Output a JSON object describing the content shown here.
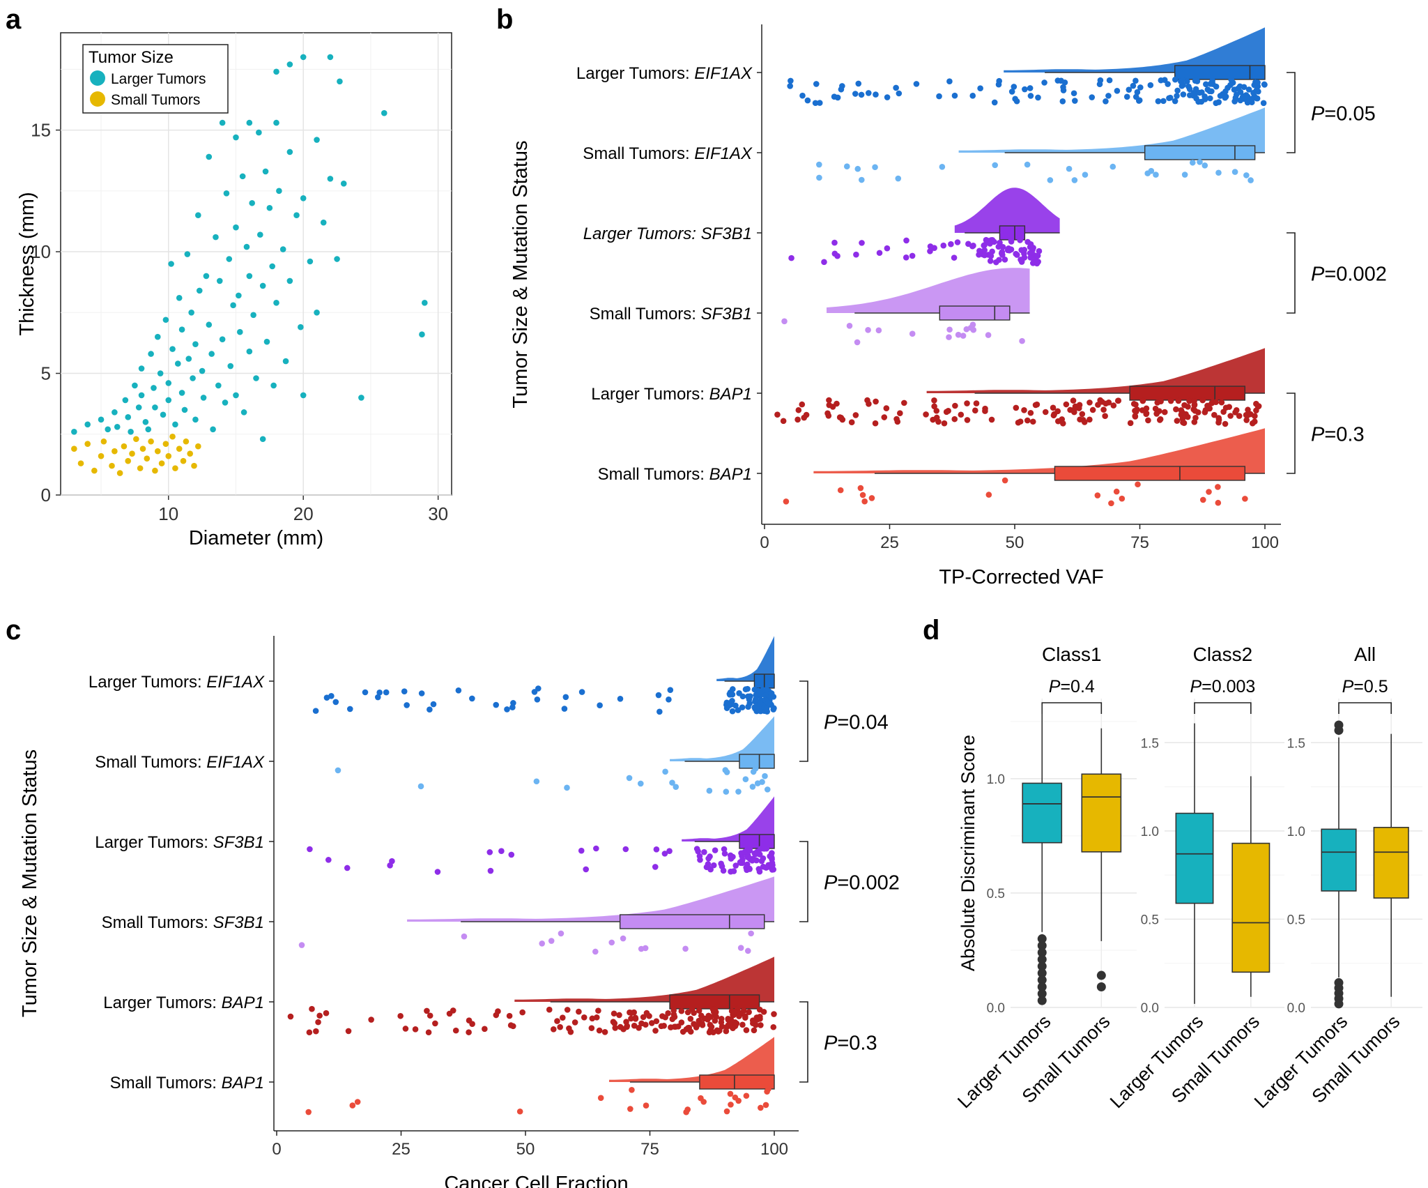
{
  "figure": {
    "panel_labels": [
      "a",
      "b",
      "c",
      "d"
    ]
  },
  "colors": {
    "larger": "#17B1BE",
    "small": "#E6B800",
    "eif_large": "#1A6FD0",
    "eif_small": "#6BB4F2",
    "sf_large": "#8E2DE8",
    "sf_small": "#C48CF2",
    "bap_large": "#B51F1F",
    "bap_small": "#EA4B3A"
  },
  "chart_data": [
    {
      "panel": "a",
      "type": "scatter",
      "title": "",
      "xlabel": "Diameter (mm)",
      "ylabel": "Thickness (mm)",
      "xlim": [
        2,
        31
      ],
      "ylim": [
        0,
        19
      ],
      "xticks": [
        10,
        20,
        30
      ],
      "yticks": [
        0,
        5,
        10,
        15
      ],
      "legend": {
        "title": "Tumor Size",
        "position": "top-left",
        "entries": [
          "Larger Tumors",
          "Small Tumors"
        ]
      },
      "series": [
        {
          "name": "Larger Tumors",
          "color": "#17B1BE",
          "points": [
            [
              3,
              2.6
            ],
            [
              4,
              2.9
            ],
            [
              5,
              3.1
            ],
            [
              5.5,
              2.7
            ],
            [
              6,
              3.4
            ],
            [
              6.2,
              2.8
            ],
            [
              6.8,
              3.9
            ],
            [
              7,
              3.2
            ],
            [
              7.2,
              2.6
            ],
            [
              7.5,
              4.5
            ],
            [
              7.8,
              3.6
            ],
            [
              8,
              5.2
            ],
            [
              8,
              4.1
            ],
            [
              8.3,
              3.0
            ],
            [
              8.5,
              2.7
            ],
            [
              8.7,
              5.8
            ],
            [
              8.9,
              4.4
            ],
            [
              9,
              3.6
            ],
            [
              9.2,
              6.5
            ],
            [
              9.4,
              5.0
            ],
            [
              9.6,
              3.3
            ],
            [
              9.8,
              7.2
            ],
            [
              10,
              4.6
            ],
            [
              10,
              3.9
            ],
            [
              10.2,
              9.5
            ],
            [
              10.3,
              6.0
            ],
            [
              10.5,
              2.9
            ],
            [
              10.7,
              5.4
            ],
            [
              10.8,
              8.1
            ],
            [
              11,
              4.2
            ],
            [
              11,
              6.8
            ],
            [
              11.2,
              3.5
            ],
            [
              11.4,
              9.9
            ],
            [
              11.5,
              5.6
            ],
            [
              11.7,
              7.5
            ],
            [
              11.8,
              4.8
            ],
            [
              12,
              3.1
            ],
            [
              12,
              6.2
            ],
            [
              12.2,
              11.5
            ],
            [
              12.3,
              8.4
            ],
            [
              12.5,
              5.1
            ],
            [
              12.6,
              4.0
            ],
            [
              12.8,
              9.0
            ],
            [
              13,
              13.9
            ],
            [
              13,
              7.0
            ],
            [
              13.2,
              5.8
            ],
            [
              13.3,
              2.7
            ],
            [
              13.5,
              10.6
            ],
            [
              13.7,
              4.5
            ],
            [
              13.8,
              8.8
            ],
            [
              14,
              15.3
            ],
            [
              14,
              6.4
            ],
            [
              14.2,
              3.8
            ],
            [
              14.3,
              12.4
            ],
            [
              14.5,
              9.7
            ],
            [
              14.6,
              5.3
            ],
            [
              14.8,
              7.8
            ],
            [
              15,
              14.7
            ],
            [
              15,
              11.0
            ],
            [
              15,
              4.1
            ],
            [
              15.2,
              8.2
            ],
            [
              15.3,
              6.7
            ],
            [
              15.5,
              13.1
            ],
            [
              15.6,
              3.4
            ],
            [
              15.8,
              10.2
            ],
            [
              16,
              15.3
            ],
            [
              16,
              9.0
            ],
            [
              16,
              5.9
            ],
            [
              16.2,
              12.0
            ],
            [
              16.3,
              7.4
            ],
            [
              16.5,
              4.8
            ],
            [
              16.7,
              14.9
            ],
            [
              16.8,
              10.7
            ],
            [
              17,
              8.6
            ],
            [
              17,
              2.3
            ],
            [
              17.2,
              13.3
            ],
            [
              17.3,
              6.3
            ],
            [
              17.5,
              11.8
            ],
            [
              17.7,
              9.4
            ],
            [
              17.8,
              4.5
            ],
            [
              18,
              17.4
            ],
            [
              18,
              15.3
            ],
            [
              18,
              7.9
            ],
            [
              18.2,
              12.5
            ],
            [
              18.5,
              10.1
            ],
            [
              18.7,
              5.5
            ],
            [
              19,
              17.7
            ],
            [
              19,
              14.1
            ],
            [
              19,
              8.8
            ],
            [
              19.5,
              11.5
            ],
            [
              19.8,
              6.9
            ],
            [
              20,
              18.0
            ],
            [
              20,
              12.2
            ],
            [
              20,
              4.1
            ],
            [
              20.5,
              9.6
            ],
            [
              21,
              14.6
            ],
            [
              21,
              7.5
            ],
            [
              21.5,
              11.2
            ],
            [
              22,
              18.0
            ],
            [
              22,
              13.0
            ],
            [
              22.5,
              9.7
            ],
            [
              22.7,
              17.0
            ],
            [
              23,
              12.8
            ],
            [
              24.3,
              4.0
            ],
            [
              26,
              15.7
            ],
            [
              28.8,
              6.6
            ],
            [
              29,
              7.9
            ]
          ]
        },
        {
          "name": "Small Tumors",
          "color": "#E6B800",
          "points": [
            [
              3,
              1.9
            ],
            [
              3.5,
              1.3
            ],
            [
              4,
              2.1
            ],
            [
              4.5,
              1.0
            ],
            [
              5,
              1.6
            ],
            [
              5.2,
              2.2
            ],
            [
              5.8,
              1.2
            ],
            [
              6,
              1.8
            ],
            [
              6.4,
              0.9
            ],
            [
              6.7,
              2.0
            ],
            [
              7,
              1.4
            ],
            [
              7.3,
              1.7
            ],
            [
              7.6,
              2.3
            ],
            [
              7.9,
              1.1
            ],
            [
              8.1,
              1.9
            ],
            [
              8.4,
              1.5
            ],
            [
              8.7,
              2.2
            ],
            [
              9,
              1.0
            ],
            [
              9.2,
              1.8
            ],
            [
              9.5,
              1.3
            ],
            [
              9.8,
              2.1
            ],
            [
              10,
              1.6
            ],
            [
              10.3,
              2.4
            ],
            [
              10.5,
              1.1
            ],
            [
              10.8,
              1.9
            ],
            [
              11.1,
              1.4
            ],
            [
              11.3,
              2.2
            ],
            [
              11.6,
              1.7
            ],
            [
              11.9,
              1.2
            ],
            [
              12.2,
              2.0
            ]
          ]
        }
      ]
    },
    {
      "panel": "b",
      "type": "raincloud",
      "xlabel": "TP-Corrected VAF",
      "ylabel": "Tumor Size & Mutation Status",
      "xlim": [
        0,
        100
      ],
      "xticks": [
        0,
        25,
        50,
        75,
        100
      ],
      "groups": [
        {
          "label": "Larger Tumors: ",
          "gene": "EIF1AX",
          "gene_italic": true,
          "color": "#1A6FD0",
          "box": [
            56,
            82,
            97,
            100,
            100
          ],
          "density_peak": 100,
          "density_height": 1.0
        },
        {
          "label": "Small Tumors: ",
          "gene": "EIF1AX",
          "gene_italic": true,
          "color": "#6BB4F2",
          "box": [
            48,
            76,
            94,
            98,
            100
          ],
          "density_peak": 100,
          "density_height": 1.0
        },
        {
          "label": "Larger Tumors: SF3B1",
          "gene": "",
          "gene_italic": false,
          "label_italic": true,
          "color": "#8E2DE8",
          "box": [
            40,
            47,
            50,
            52,
            59
          ],
          "density_peak": 50,
          "density_height": 1.0
        },
        {
          "label": "Small Tumors: ",
          "gene": "SF3B1",
          "gene_italic": true,
          "color": "#C48CF2",
          "box": [
            18,
            35,
            46,
            49,
            53
          ],
          "density_peak": 50,
          "density_height": 1.0
        },
        {
          "label": "Larger Tumors: ",
          "gene": "BAP1",
          "gene_italic": true,
          "color": "#B51F1F",
          "box": [
            42,
            73,
            90,
            96,
            100
          ],
          "density_peak": 100,
          "density_height": 1.0
        },
        {
          "label": "Small Tumors: ",
          "gene": "BAP1",
          "gene_italic": true,
          "color": "#EA4B3A",
          "box": [
            22,
            58,
            83,
            96,
            100
          ],
          "density_peak": 100,
          "density_height": 1.0
        }
      ],
      "pvalues": [
        {
          "groups": [
            0,
            1
          ],
          "text": "=0.05"
        },
        {
          "groups": [
            2,
            3
          ],
          "text": "=0.002"
        },
        {
          "groups": [
            4,
            5
          ],
          "text": "=0.3"
        }
      ]
    },
    {
      "panel": "c",
      "type": "raincloud",
      "xlabel": "Cancer Cell Fraction",
      "ylabel": "Tumor Size & Mutation Status",
      "xlim": [
        0,
        100
      ],
      "xticks": [
        0,
        25,
        50,
        75,
        100
      ],
      "groups": [
        {
          "label": "Larger Tumors: ",
          "gene": "EIF1AX",
          "gene_italic": true,
          "color": "#1A6FD0",
          "box": [
            90,
            96,
            98,
            100,
            100
          ],
          "density_peak": 100,
          "density_height": 1.0
        },
        {
          "label": "Small Tumors: ",
          "gene": "EIF1AX",
          "gene_italic": true,
          "color": "#6BB4F2",
          "box": [
            82,
            93,
            97,
            100,
            100
          ],
          "density_peak": 100,
          "density_height": 1.0
        },
        {
          "label": "Larger Tumors: ",
          "gene": "SF3B1",
          "gene_italic": true,
          "color": "#8E2DE8",
          "box": [
            84,
            93,
            97,
            100,
            100
          ],
          "density_peak": 100,
          "density_height": 1.0
        },
        {
          "label": "Small Tumors: ",
          "gene": "SF3B1",
          "gene_italic": true,
          "color": "#C48CF2",
          "box": [
            37,
            69,
            91,
            98,
            100
          ],
          "density_peak": 100,
          "density_height": 1.0
        },
        {
          "label": "Larger Tumors: ",
          "gene": "BAP1",
          "gene_italic": true,
          "color": "#B51F1F",
          "box": [
            55,
            79,
            91,
            97,
            100
          ],
          "density_peak": 100,
          "density_height": 1.0
        },
        {
          "label": "Small Tumors: ",
          "gene": "BAP1",
          "gene_italic": true,
          "color": "#EA4B3A",
          "box": [
            71,
            85,
            92,
            100,
            100
          ],
          "density_peak": 100,
          "density_height": 1.0
        }
      ],
      "pvalues": [
        {
          "groups": [
            0,
            1
          ],
          "text": "=0.04"
        },
        {
          "groups": [
            2,
            3
          ],
          "text": "=0.002"
        },
        {
          "groups": [
            4,
            5
          ],
          "text": "=0.3"
        }
      ]
    },
    {
      "panel": "d",
      "type": "box",
      "ylabel": "Absolute Discriminant Score",
      "facets": [
        {
          "title": "Class1",
          "ylim": [
            0,
            1.35
          ],
          "yticks": [
            0.0,
            0.5,
            1.0
          ],
          "ptext": "=0.4",
          "boxes": [
            {
              "name": "Larger Tumors",
              "stats": [
                0.33,
                0.72,
                0.89,
                0.98,
                1.32
              ],
              "outliers": [
                0.3,
                0.27,
                0.24,
                0.21,
                0.18,
                0.15,
                0.12,
                0.09,
                0.06,
                0.03
              ]
            },
            {
              "name": "Small Tumors",
              "stats": [
                0.29,
                0.68,
                0.92,
                1.02,
                1.22
              ],
              "outliers": [
                0.14,
                0.09
              ]
            }
          ]
        },
        {
          "title": "Class2",
          "ylim": [
            0,
            1.75
          ],
          "yticks": [
            0.0,
            0.5,
            1.0,
            1.5
          ],
          "ptext": "=0.003",
          "boxes": [
            {
              "name": "Larger Tumors",
              "stats": [
                0.02,
                0.59,
                0.87,
                1.1,
                1.61
              ],
              "outliers": []
            },
            {
              "name": "Small Tumors",
              "stats": [
                0.06,
                0.2,
                0.48,
                0.93,
                1.31
              ],
              "outliers": []
            }
          ]
        },
        {
          "title": "All",
          "ylim": [
            0,
            1.75
          ],
          "yticks": [
            0.0,
            0.5,
            1.0,
            1.5
          ],
          "ptext": "=0.5",
          "boxes": [
            {
              "name": "Larger Tumors",
              "stats": [
                0.17,
                0.66,
                0.88,
                1.01,
                1.53
              ],
              "outliers": [
                1.6,
                1.57,
                0.14,
                0.11,
                0.08,
                0.05,
                0.02
              ]
            },
            {
              "name": "Small Tumors",
              "stats": [
                0.06,
                0.62,
                0.88,
                1.02,
                1.55
              ],
              "outliers": []
            }
          ]
        }
      ],
      "xcategories": [
        "Larger Tumors",
        "Small Tumors"
      ]
    }
  ]
}
